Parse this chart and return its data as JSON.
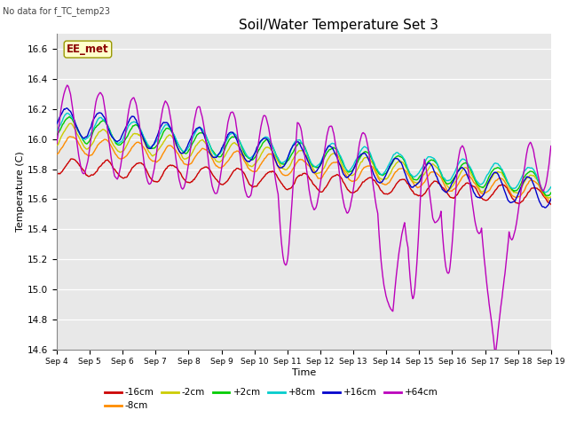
{
  "title": "Soil/Water Temperature Set 3",
  "subtitle": "No data for f_TC_temp23",
  "xlabel": "Time",
  "ylabel": "Temperature (C)",
  "ylim": [
    14.6,
    16.7
  ],
  "xlim": [
    0,
    15
  ],
  "fig_bg": "#ffffff",
  "plot_bg": "#e8e8e8",
  "annotation": "EE_met",
  "x_tick_labels": [
    "Sep 4",
    "Sep 5",
    "Sep 6",
    "Sep 7",
    "Sep 8",
    "Sep 9",
    "Sep 10",
    "Sep 11",
    "Sep 12",
    "Sep 13",
    "Sep 14",
    "Sep 15",
    "Sep 16",
    "Sep 17",
    "Sep 18",
    "Sep 19"
  ],
  "series_labels": [
    "-16cm",
    "-8cm",
    "-2cm",
    "+2cm",
    "+8cm",
    "+16cm",
    "+64cm"
  ],
  "series_colors": [
    "#cc0000",
    "#ff8c00",
    "#cccc00",
    "#00cc00",
    "#00cccc",
    "#0000cc",
    "#bb00bb"
  ],
  "line_width": 1.0
}
